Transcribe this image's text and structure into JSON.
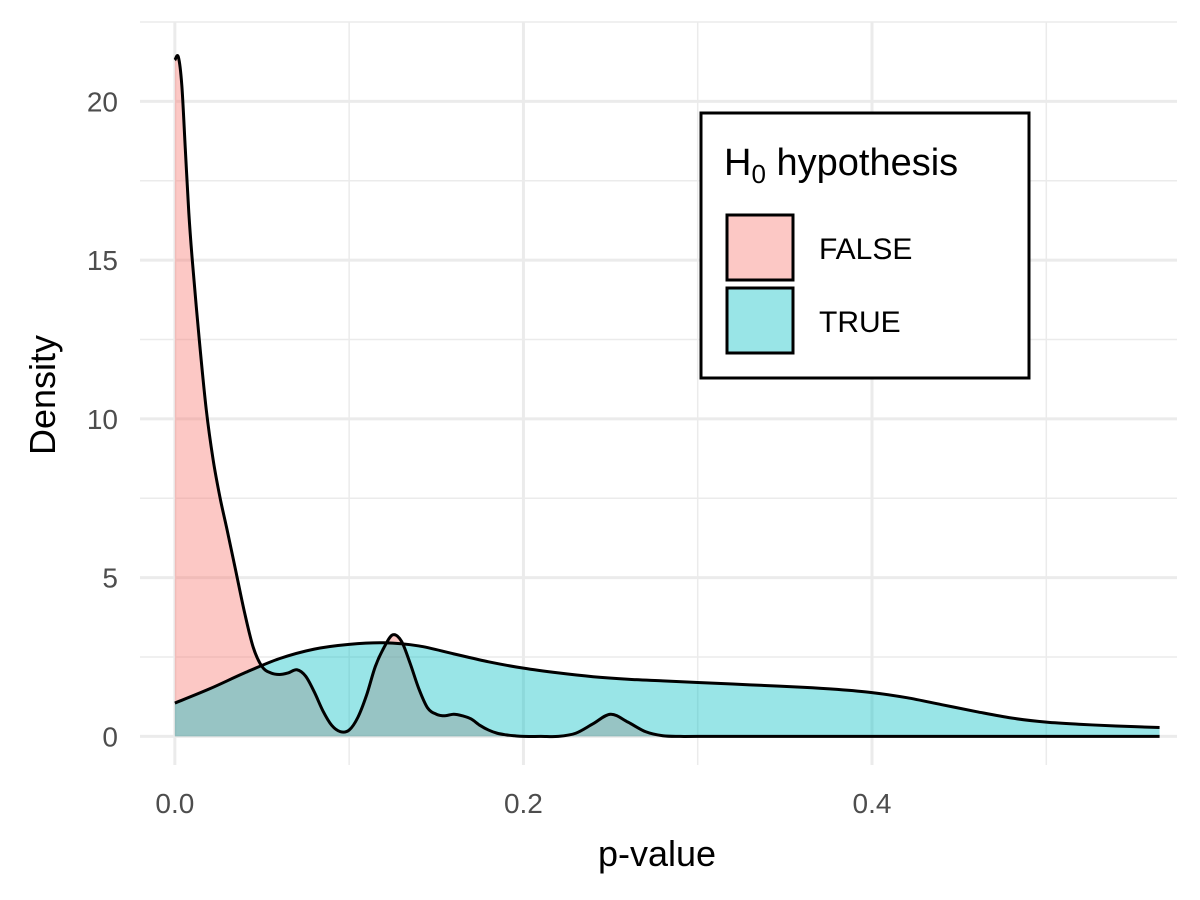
{
  "chart_data": {
    "type": "area",
    "xlabel": "p-value",
    "ylabel": "Density",
    "xlim": [
      -0.02,
      0.575
    ],
    "ylim": [
      -0.9,
      22.5
    ],
    "x_ticks": [
      0.0,
      0.2,
      0.4
    ],
    "x_tick_labels": [
      "0.0",
      "0.2",
      "0.4"
    ],
    "y_ticks": [
      0,
      5,
      10,
      15,
      20
    ],
    "y_tick_labels": [
      "0",
      "5",
      "10",
      "15",
      "20"
    ],
    "grid": true,
    "legend": {
      "title_main": "H",
      "title_sub": "0",
      "title_rest": " hypothesis",
      "position": "top-right",
      "entries": [
        "FALSE",
        "TRUE"
      ]
    },
    "series": [
      {
        "name": "FALSE",
        "color": "#F8766D",
        "x": [
          0.0,
          0.002,
          0.004,
          0.006,
          0.008,
          0.01,
          0.014,
          0.018,
          0.022,
          0.026,
          0.03,
          0.035,
          0.04,
          0.045,
          0.05,
          0.055,
          0.06,
          0.065,
          0.07,
          0.075,
          0.08,
          0.085,
          0.09,
          0.095,
          0.1,
          0.105,
          0.11,
          0.115,
          0.12,
          0.125,
          0.13,
          0.135,
          0.14,
          0.145,
          0.15,
          0.155,
          0.16,
          0.165,
          0.17,
          0.175,
          0.18,
          0.185,
          0.19,
          0.195,
          0.2,
          0.21,
          0.22,
          0.23,
          0.24,
          0.25,
          0.26,
          0.27,
          0.28,
          0.29,
          0.3,
          0.35,
          0.4,
          0.45,
          0.5,
          0.565
        ],
        "y": [
          21.3,
          21.4,
          20.5,
          18.5,
          16.5,
          15.0,
          12.5,
          10.3,
          8.7,
          7.5,
          6.5,
          5.2,
          3.9,
          2.8,
          2.2,
          2.0,
          1.95,
          2.0,
          2.1,
          1.9,
          1.4,
          0.8,
          0.35,
          0.15,
          0.2,
          0.6,
          1.3,
          2.2,
          2.8,
          3.2,
          3.0,
          2.3,
          1.5,
          0.9,
          0.7,
          0.65,
          0.7,
          0.65,
          0.55,
          0.35,
          0.2,
          0.1,
          0.05,
          0.02,
          0.0,
          0.0,
          0.0,
          0.1,
          0.4,
          0.7,
          0.45,
          0.15,
          0.02,
          0.0,
          0.0,
          0.0,
          0.0,
          0.0,
          0.0,
          0.0
        ]
      },
      {
        "name": "TRUE",
        "color": "#00BFC4",
        "x": [
          0.0,
          0.02,
          0.04,
          0.06,
          0.08,
          0.1,
          0.12,
          0.14,
          0.16,
          0.18,
          0.2,
          0.22,
          0.24,
          0.26,
          0.28,
          0.3,
          0.32,
          0.34,
          0.36,
          0.38,
          0.4,
          0.42,
          0.44,
          0.46,
          0.48,
          0.5,
          0.52,
          0.54,
          0.565
        ],
        "y": [
          1.05,
          1.5,
          2.0,
          2.45,
          2.75,
          2.9,
          2.95,
          2.85,
          2.6,
          2.35,
          2.15,
          2.0,
          1.88,
          1.8,
          1.75,
          1.7,
          1.65,
          1.6,
          1.55,
          1.48,
          1.38,
          1.22,
          1.0,
          0.78,
          0.58,
          0.45,
          0.38,
          0.33,
          0.28
        ]
      }
    ]
  }
}
